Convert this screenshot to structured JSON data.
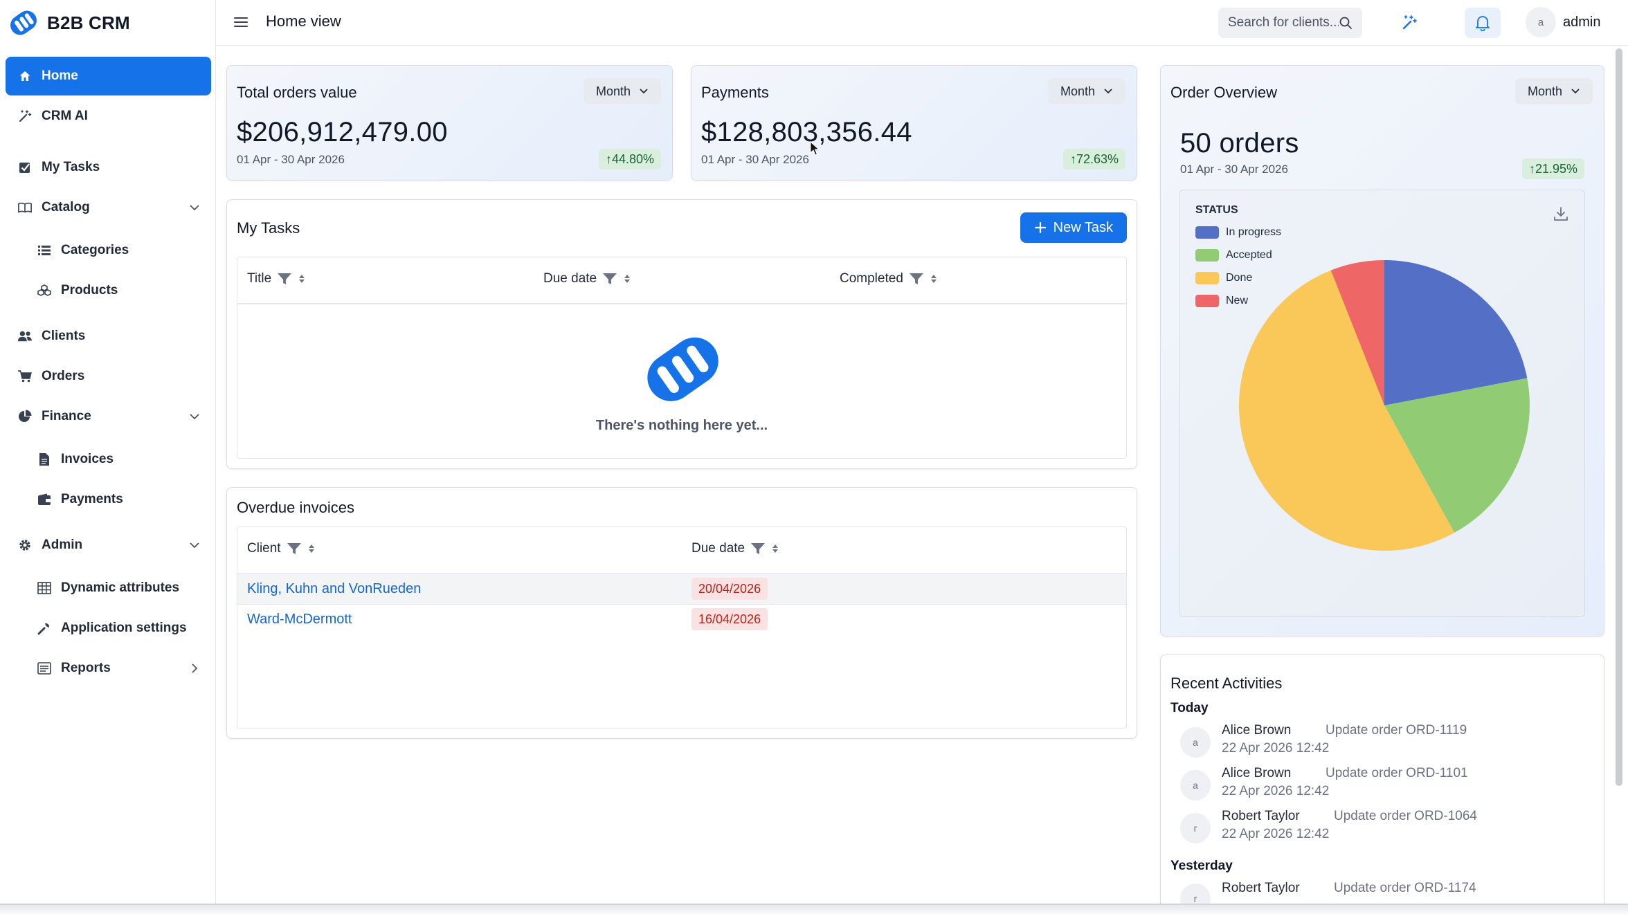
{
  "app": {
    "brand": "B2B CRM",
    "page_title": "Home view"
  },
  "header": {
    "search_placeholder": "Search for clients...",
    "user_initial": "a",
    "user_name": "admin"
  },
  "sidebar": {
    "items": [
      {
        "label": "Home",
        "icon": "home-icon",
        "active": true
      },
      {
        "label": "CRM AI",
        "icon": "magic-wand-icon"
      },
      {
        "label": "My Tasks",
        "icon": "checkbox-icon"
      },
      {
        "label": "Catalog",
        "icon": "book-icon",
        "expandable": true
      },
      {
        "label": "Categories",
        "icon": "list-icon",
        "sub": true
      },
      {
        "label": "Products",
        "icon": "cubes-icon",
        "sub": true
      },
      {
        "label": "Clients",
        "icon": "users-icon"
      },
      {
        "label": "Orders",
        "icon": "cart-icon"
      },
      {
        "label": "Finance",
        "icon": "pie-icon",
        "expandable": true
      },
      {
        "label": "Invoices",
        "icon": "file-icon",
        "sub": true
      },
      {
        "label": "Payments",
        "icon": "wallet-icon",
        "sub": true
      },
      {
        "label": "Admin",
        "icon": "gear-icon",
        "expandable": true
      },
      {
        "label": "Dynamic attributes",
        "icon": "table-icon",
        "sub": true
      },
      {
        "label": "Application settings",
        "icon": "wrench-icon",
        "sub": true
      },
      {
        "label": "Reports",
        "icon": "report-icon",
        "sub": true,
        "arrow": "right"
      }
    ]
  },
  "total_orders": {
    "title": "Total orders value",
    "period": "Month",
    "value": "$206,912,479.00",
    "range": "01 Apr - 30 Apr 2026",
    "change": "↑44.80%"
  },
  "payments": {
    "title": "Payments",
    "period": "Month",
    "value": "$128,803,356.44",
    "range": "01 Apr - 30 Apr 2026",
    "change": "↑72.63%"
  },
  "my_tasks": {
    "title": "My Tasks",
    "new_task_label": "New Task",
    "columns": [
      "Title",
      "Due date",
      "Completed"
    ],
    "empty_text": "There's nothing here yet..."
  },
  "overdue": {
    "title": "Overdue invoices",
    "columns": [
      "Client",
      "Due date"
    ],
    "rows": [
      {
        "client": "Kling, Kuhn and VonRueden",
        "due": "20/04/2026"
      },
      {
        "client": "Ward-McDermott",
        "due": "16/04/2026"
      }
    ]
  },
  "order_overview": {
    "title": "Order Overview",
    "period": "Month",
    "count": "50 orders",
    "range": "01 Apr - 30 Apr 2026",
    "change": "↑21.95%",
    "legend_title": "STATUS"
  },
  "chart_data": {
    "type": "pie",
    "categories": [
      "In progress",
      "Accepted",
      "Done",
      "New"
    ],
    "values": [
      11,
      10,
      26,
      3
    ],
    "colors": [
      "#5470c6",
      "#91cc75",
      "#fac858",
      "#ee6666"
    ],
    "legend": "top-left"
  },
  "activities": {
    "title": "Recent Activities",
    "groups": [
      {
        "day": "Today",
        "items": [
          {
            "initial": "a",
            "name": "Alice Brown",
            "action": "Update order ORD-1119",
            "time": "22 Apr 2026 12:42"
          },
          {
            "initial": "a",
            "name": "Alice Brown",
            "action": "Update order ORD-1101",
            "time": "22 Apr 2026 12:42"
          },
          {
            "initial": "r",
            "name": "Robert Taylor",
            "action": "Update order ORD-1064",
            "time": "22 Apr 2026 12:42"
          }
        ]
      },
      {
        "day": "Yesterday",
        "items": [
          {
            "initial": "r",
            "name": "Robert Taylor",
            "action": "Update order ORD-1174",
            "time": ""
          }
        ]
      }
    ]
  },
  "colors": {
    "accent": "#1672e8",
    "success_bg": "#d9eedd",
    "danger_bg": "#fbe2e2"
  }
}
